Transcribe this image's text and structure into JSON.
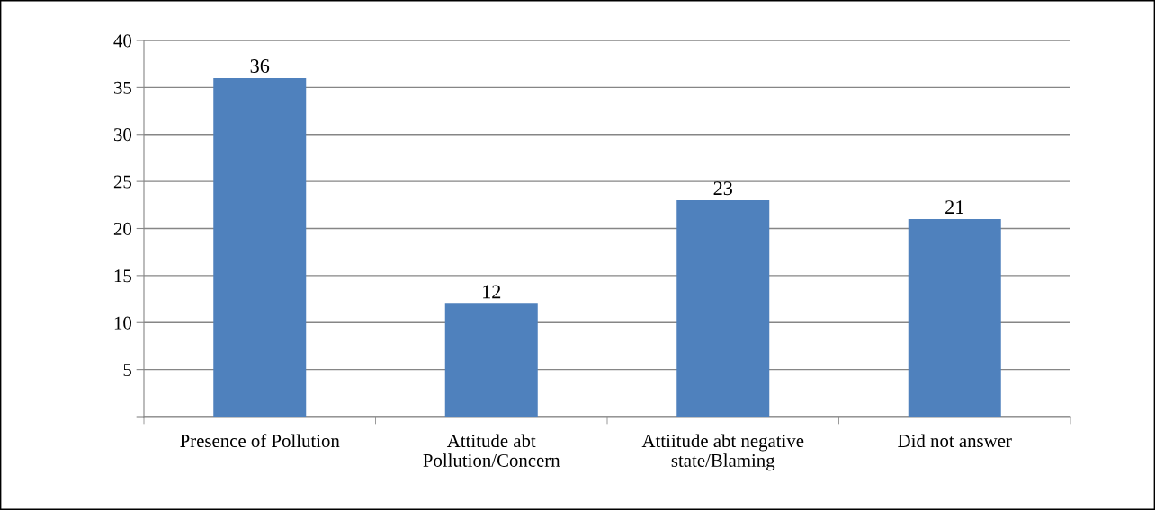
{
  "chart_data": {
    "type": "bar",
    "categories": [
      "Presence of Pollution",
      "Attitude abt\nPollution/Concern",
      "Attiitude abt negative\nstate/Blaming",
      "Did not answer"
    ],
    "values": [
      36,
      12,
      23,
      21
    ],
    "color": "#4f81bd",
    "ylim": [
      0,
      40
    ],
    "yticks": [
      {
        "value": 0,
        "label": null
      },
      5,
      10,
      15,
      20,
      25,
      30,
      35,
      40
    ],
    "grid": "y",
    "data_labels": true,
    "legend": false
  }
}
